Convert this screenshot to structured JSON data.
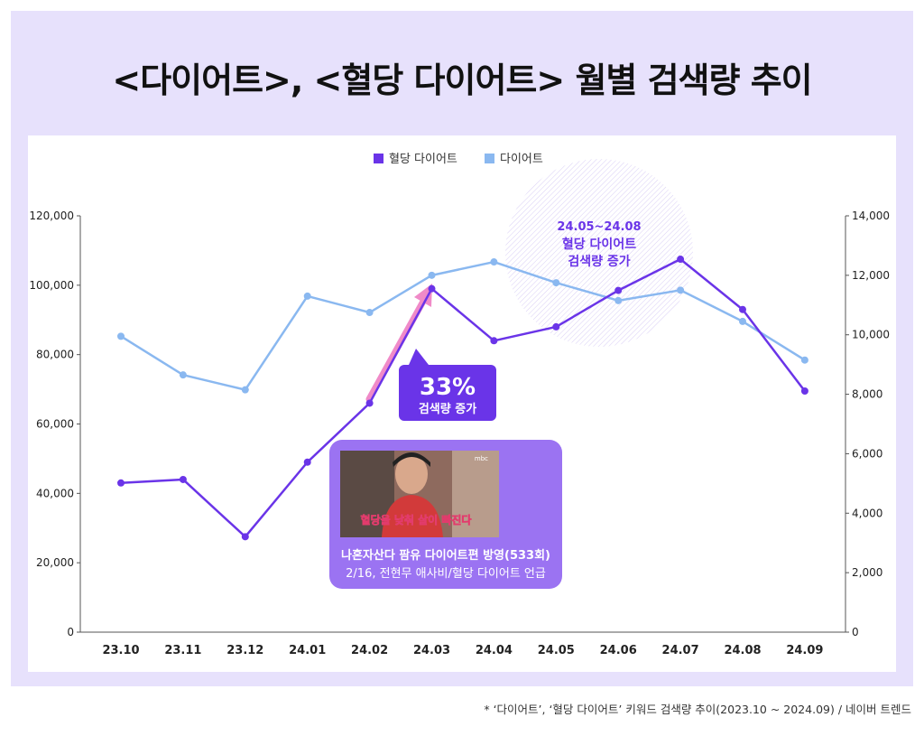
{
  "title": "<다이어트>, <혈당 다이어트> 월별 검색량 추이",
  "footnote": "* ‘다이어트’, ‘혈당 다이어트’ 키워드 검색량 추이(2023.10 ~ 2024.09) / 네이버 트렌드",
  "colors": {
    "background": "#e7e1fc",
    "series_hyeoldang": "#6a34e8",
    "series_diet": "#8ab8f0",
    "highlight_arrow": "#f08ac8",
    "callout_bg": "#6a34e8",
    "tv_card_bg": "#9b73f2"
  },
  "chart_data": {
    "type": "line",
    "title": "<다이어트>, <혈당 다이어트> 월별 검색량 추이",
    "categories": [
      "23.10",
      "23.11",
      "23.12",
      "24.01",
      "24.02",
      "24.03",
      "24.04",
      "24.05",
      "24.06",
      "24.07",
      "24.08",
      "24.09"
    ],
    "left_axis": {
      "ylim": [
        0,
        120000
      ],
      "ticks": [
        "0",
        "20,000",
        "40,000",
        "60,000",
        "80,000",
        "100,000",
        "120,000"
      ]
    },
    "right_axis": {
      "ylim": [
        0,
        14000
      ],
      "ticks": [
        "0",
        "2,000",
        "4,000",
        "6,000",
        "8,000",
        "10,000",
        "12,000",
        "14,000"
      ]
    },
    "legend_position": "top-center",
    "grid": false,
    "series": [
      {
        "name": "혈당 다이어트",
        "axis": "left",
        "color": "#6a34e8",
        "values": [
          43000,
          44000,
          27500,
          49000,
          66000,
          99000,
          84000,
          88000,
          98500,
          107500,
          93000,
          69500
        ]
      },
      {
        "name": "다이어트",
        "axis": "right",
        "color": "#8ab8f0",
        "values": [
          9950,
          8650,
          8150,
          11300,
          10750,
          12000,
          12450,
          11750,
          11150,
          11500,
          10450,
          9150
        ]
      }
    ],
    "annotations": {
      "increase_callout": {
        "value": "33%",
        "label": "검색량 증가"
      },
      "period_note": {
        "range": "24.05~24.08",
        "line1": "혈당 다이어트",
        "line2": "검색량 증가"
      },
      "tv_card": {
        "caption": "나혼자산다 팜유 다이어트편 방영(533회)",
        "subcaption": "2/16, 전현무 애사비/혈당 다이어트 언급",
        "broadcaster_mark": "mbc",
        "subtitle_overlay": "혈당을 낮춰 살이 빠진다"
      }
    }
  }
}
